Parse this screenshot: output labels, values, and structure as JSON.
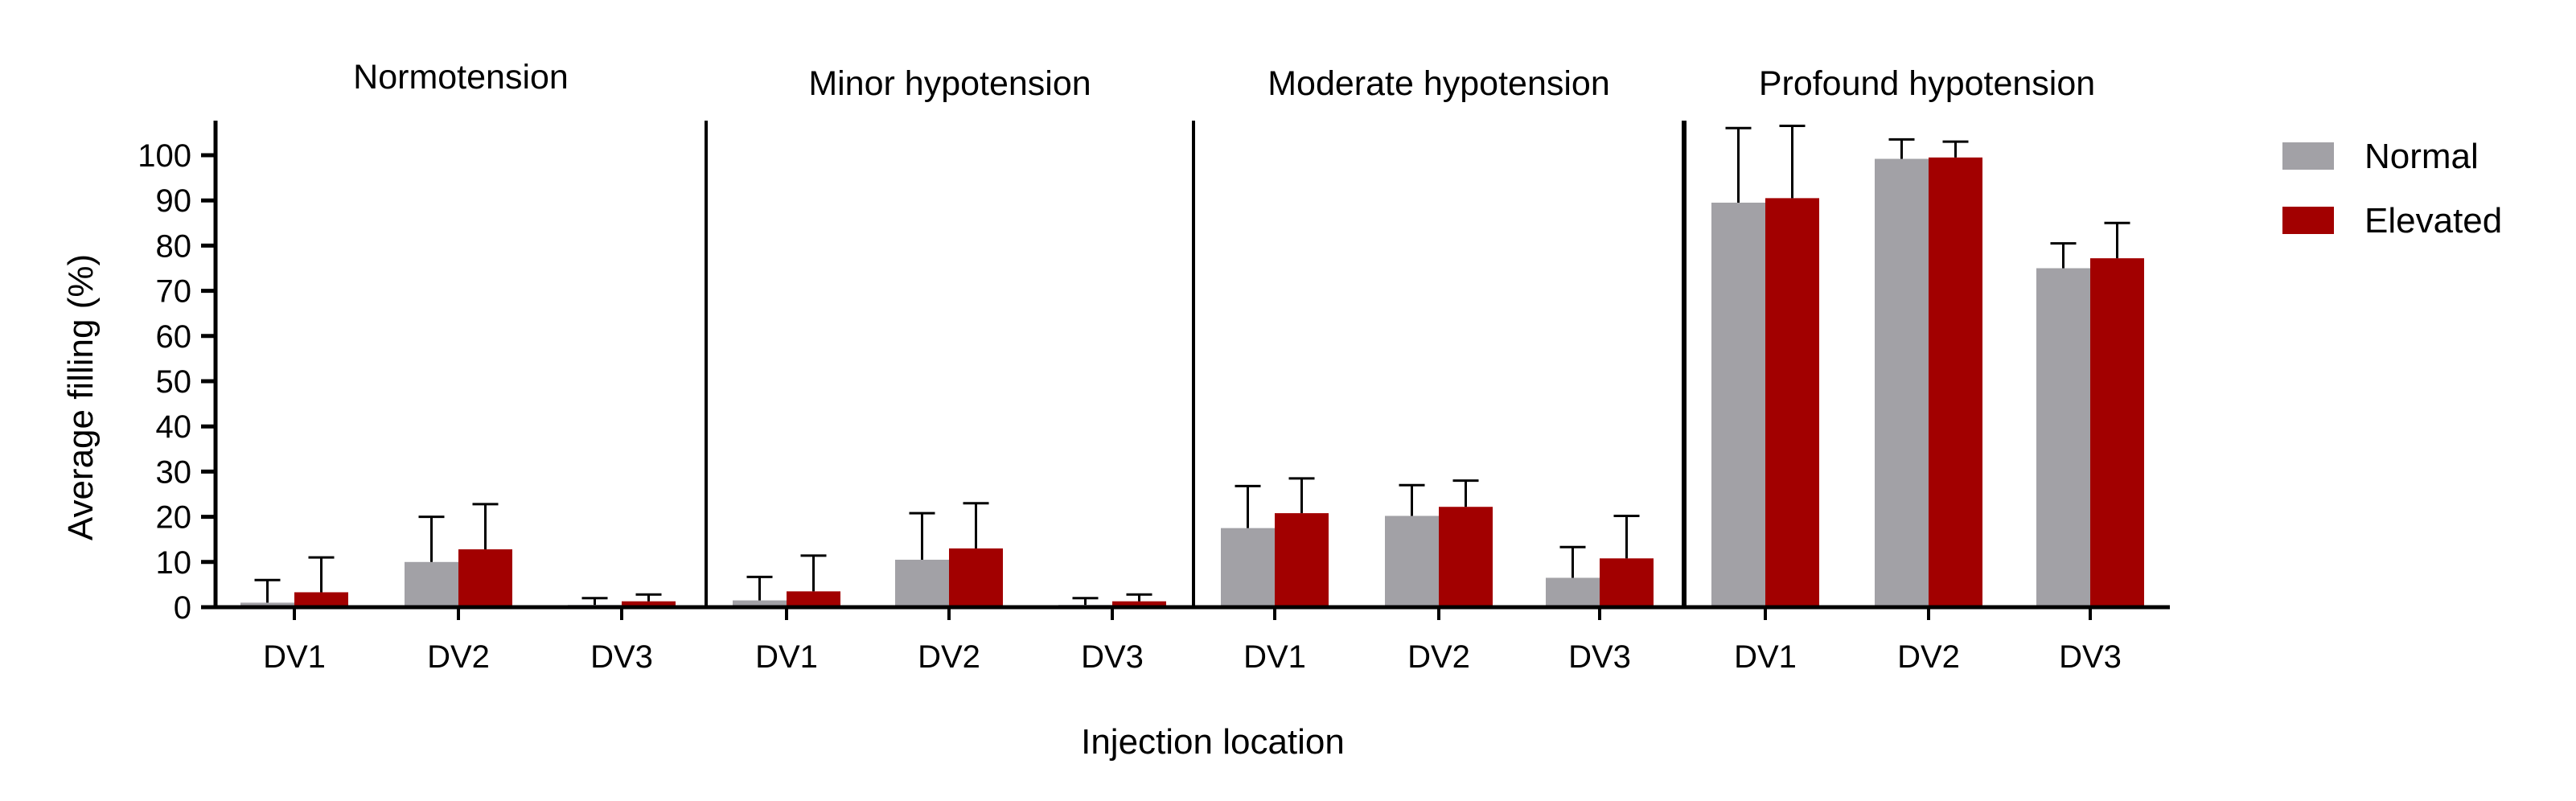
{
  "chart_data": {
    "type": "bar",
    "ylabel": "Average filling (%)",
    "xlabel": "Injection location",
    "ylim": [
      0,
      108
    ],
    "yticks": [
      0,
      10,
      20,
      30,
      40,
      50,
      60,
      70,
      80,
      90,
      100
    ],
    "categories": [
      "DV1",
      "DV2",
      "DV3"
    ],
    "legend": {
      "position": "right",
      "entries": [
        {
          "name": "Normal",
          "color": "#a2a1a6"
        },
        {
          "name": "Elevated",
          "color": "#a20000"
        }
      ]
    },
    "panels": [
      {
        "title": "Normotension",
        "series": [
          {
            "name": "Normal",
            "values": [
              1,
              10,
              0.5
            ],
            "errors": [
              5,
              10,
              1.5
            ]
          },
          {
            "name": "Elevated",
            "values": [
              3.3,
              12.8,
              1.3
            ],
            "errors": [
              7.7,
              10,
              1.5
            ]
          }
        ]
      },
      {
        "title": "Minor hypotension",
        "series": [
          {
            "name": "Normal",
            "values": [
              1.5,
              10.5,
              0.5
            ],
            "errors": [
              5.2,
              10.3,
              1.5
            ]
          },
          {
            "name": "Elevated",
            "values": [
              3.5,
              13,
              1.3
            ],
            "errors": [
              7.9,
              10,
              1.5
            ]
          }
        ]
      },
      {
        "title": "Moderate hypotension",
        "series": [
          {
            "name": "Normal",
            "values": [
              17.5,
              20.2,
              6.5
            ],
            "errors": [
              9.3,
              6.8,
              6.8
            ]
          },
          {
            "name": "Elevated",
            "values": [
              20.8,
              22.2,
              10.8
            ],
            "errors": [
              7.7,
              5.8,
              9.4
            ]
          }
        ]
      },
      {
        "title": "Profound hypotension",
        "series": [
          {
            "name": "Normal",
            "values": [
              89.5,
              99.2,
              75
            ],
            "errors": [
              16.5,
              4.3,
              5.5
            ]
          },
          {
            "name": "Elevated",
            "values": [
              90.5,
              99.5,
              77.2
            ],
            "errors": [
              16,
              3.5,
              7.8
            ]
          }
        ]
      }
    ]
  }
}
